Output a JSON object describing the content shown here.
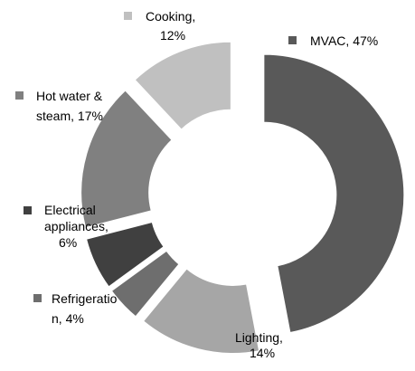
{
  "chart_data": {
    "type": "pie",
    "donut": true,
    "exploded": true,
    "slices": [
      {
        "category": "MVAC",
        "value": 47,
        "color": "#595959",
        "label_lines": [
          "MVAC, 47%"
        ]
      },
      {
        "category": "Lighting",
        "value": 14,
        "color": "#a6a6a6",
        "label_lines": [
          "Lighting,",
          "14%"
        ]
      },
      {
        "category": "Refrigeration",
        "value": 4,
        "color": "#6e6e6e",
        "label_lines": [
          "Refrigeratio",
          "n, 4%"
        ]
      },
      {
        "category": "Electrical appliances",
        "value": 6,
        "color": "#404040",
        "label_lines": [
          "Electrical",
          "appliances,",
          "6%"
        ]
      },
      {
        "category": "Hot water & steam",
        "value": 17,
        "color": "#808080",
        "label_lines": [
          "Hot water &",
          "steam, 17%"
        ]
      },
      {
        "category": "Cooking",
        "value": 12,
        "color": "#c0c0c0",
        "label_lines": [
          "Cooking,",
          "12%"
        ]
      }
    ],
    "legend": "none",
    "label_position": "outside"
  }
}
